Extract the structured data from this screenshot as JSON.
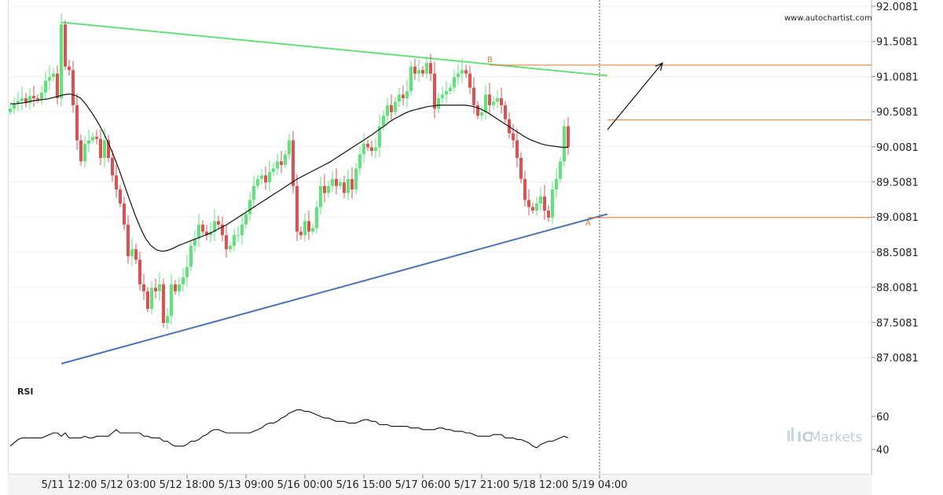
{
  "watermark": {
    "site": "www.autochartist.com",
    "brand": "ICMarkets",
    "brand_prefix": "IC",
    "brand_suffix": "Markets"
  },
  "colors": {
    "bull": "#5ce67a",
    "bear": "#e05050",
    "resistance": "#66e07a",
    "support": "#4a73b3",
    "level": "#e07a2e",
    "ma": "#111111",
    "rsi": "#111111"
  },
  "chart_data": [
    {
      "type": "candlestick",
      "title": "",
      "ylim": [
        86.6,
        92.0081
      ],
      "y_ticks": [
        "92.0081",
        "91.5081",
        "91.0081",
        "90.5081",
        "90.0081",
        "89.5081",
        "89.0081",
        "88.5081",
        "88.0081",
        "87.5081",
        "87.0081"
      ],
      "x_ticks": [
        "5/11 12:00",
        "5/12 03:00",
        "5/12 18:00",
        "5/13 09:00",
        "5/16 00:00",
        "5/16 15:00",
        "5/17 06:00",
        "5/17 21:00",
        "5/18 12:00",
        "5/19 04:00"
      ],
      "x_tick_bar_index": [
        15,
        30,
        45,
        60,
        75,
        90,
        105,
        120,
        135,
        150
      ],
      "candles_close": [
        90.55,
        90.62,
        90.66,
        90.7,
        90.63,
        90.73,
        90.7,
        90.68,
        90.78,
        90.95,
        91.0,
        91.05,
        90.7,
        91.75,
        91.15,
        91.1,
        90.6,
        90.1,
        89.8,
        90.05,
        90.1,
        90.15,
        90.12,
        89.85,
        90.1,
        89.85,
        89.6,
        89.4,
        89.2,
        88.9,
        88.45,
        88.55,
        88.4,
        88.05,
        87.95,
        87.7,
        88.0,
        87.95,
        88.05,
        87.5,
        87.6,
        88.05,
        87.95,
        88.05,
        88.15,
        88.3,
        88.6,
        88.7,
        88.9,
        88.8,
        88.75,
        88.8,
        88.95,
        88.9,
        88.75,
        88.55,
        88.6,
        88.75,
        88.75,
        88.9,
        89.05,
        89.25,
        89.45,
        89.55,
        89.6,
        89.5,
        89.65,
        89.7,
        89.8,
        89.75,
        89.9,
        90.1,
        89.45,
        88.8,
        88.75,
        88.95,
        88.8,
        88.85,
        89.15,
        89.45,
        89.35,
        89.45,
        89.55,
        89.45,
        89.5,
        89.35,
        89.55,
        89.4,
        89.7,
        89.9,
        90.05,
        90.0,
        89.95,
        90.0,
        90.3,
        90.45,
        90.6,
        90.5,
        90.65,
        90.75,
        90.7,
        90.8,
        91.15,
        91.05,
        91.1,
        91.05,
        91.2,
        91.05,
        90.55,
        90.7,
        90.75,
        90.8,
        90.85,
        91.0,
        91.05,
        91.1,
        91.05,
        90.85,
        90.6,
        90.45,
        90.5,
        90.75,
        90.6,
        90.65,
        90.7,
        90.6,
        90.4,
        90.2,
        90.1,
        89.85,
        89.55,
        89.25,
        89.15,
        89.1,
        89.2,
        89.3,
        89.1,
        89.0,
        89.4,
        89.55,
        89.8,
        90.3,
        90.0
      ],
      "ma_values": [
        90.62,
        90.62,
        90.63,
        90.64,
        90.66,
        90.67,
        90.68,
        90.69,
        90.71,
        90.73,
        90.75,
        90.76,
        90.74,
        90.7,
        90.61,
        90.5,
        90.38,
        90.24,
        90.08,
        89.9,
        89.7,
        89.48,
        89.26,
        89.05,
        88.86,
        88.7,
        88.6,
        88.54,
        88.52,
        88.53,
        88.56,
        88.6,
        88.63,
        88.66,
        88.69,
        88.72,
        88.75,
        88.78,
        88.82,
        88.86,
        88.9,
        88.95,
        89.0,
        89.05,
        89.1,
        89.15,
        89.2,
        89.25,
        89.3,
        89.35,
        89.4,
        89.45,
        89.5,
        89.55,
        89.59,
        89.63,
        89.67,
        89.71,
        89.75,
        89.79,
        89.84,
        89.89,
        89.94,
        89.99,
        90.04,
        90.09,
        90.14,
        90.19,
        90.25,
        90.3,
        90.36,
        90.41,
        90.45,
        90.49,
        90.52,
        90.54,
        90.56,
        90.58,
        90.59,
        90.6,
        90.6,
        90.6,
        90.6,
        90.6,
        90.6,
        90.59,
        90.57,
        90.54,
        90.5,
        90.45,
        90.4,
        90.35,
        90.3,
        90.25,
        90.2,
        90.15,
        90.11,
        90.08,
        90.05,
        90.03,
        90.02,
        90.01,
        90.0,
        90.0
      ],
      "trendlines": [
        {
          "role": "resistance",
          "from": [
            13,
            91.78
          ],
          "to": [
            152,
            91.02
          ]
        },
        {
          "role": "support",
          "from": [
            13,
            86.92
          ],
          "to": [
            152,
            89.05
          ]
        }
      ],
      "levels": [
        {
          "label": "B",
          "value": 91.17,
          "from_bar": 122
        },
        {
          "label": "",
          "value": 90.39,
          "from_bar": 152
        },
        {
          "label": "A",
          "value": 89.0,
          "from_bar": 147
        }
      ],
      "projection": {
        "from": [
          152,
          90.25
        ],
        "to": [
          166,
          91.2
        ]
      },
      "current_bar_index": 150
    },
    {
      "type": "line",
      "title": "RSI",
      "ylim": [
        30,
        70
      ],
      "y_ticks": [
        "60",
        "40"
      ],
      "values": [
        42,
        44,
        46,
        47,
        47,
        47,
        47,
        47,
        47,
        48,
        49,
        50,
        50,
        48,
        50,
        47,
        47,
        47,
        47,
        48,
        47,
        47,
        48,
        48,
        48,
        48,
        50,
        52,
        50,
        50,
        50,
        50,
        50,
        50,
        48,
        48,
        47,
        47,
        47,
        45,
        45,
        43,
        42,
        42,
        42,
        43,
        45,
        45,
        46,
        48,
        49,
        51,
        52,
        52,
        51,
        50,
        50,
        50,
        50,
        50,
        50,
        50,
        51,
        52,
        53,
        55,
        56,
        56,
        57,
        59,
        60,
        62,
        63,
        64,
        64,
        63,
        63,
        62,
        61,
        60,
        59,
        59,
        58,
        57,
        57,
        57,
        56,
        56,
        56,
        57,
        58,
        58,
        57,
        57,
        55,
        55,
        55,
        54,
        54,
        54,
        54,
        54,
        53,
        53,
        53,
        52,
        52,
        52,
        52,
        53,
        53,
        52,
        52,
        51,
        51,
        51,
        50,
        50,
        49,
        48,
        48,
        48,
        48,
        49,
        49,
        49,
        47,
        47,
        47,
        46,
        46,
        45,
        44,
        42,
        41,
        43,
        44,
        45,
        45,
        46,
        47,
        48,
        47
      ]
    }
  ]
}
